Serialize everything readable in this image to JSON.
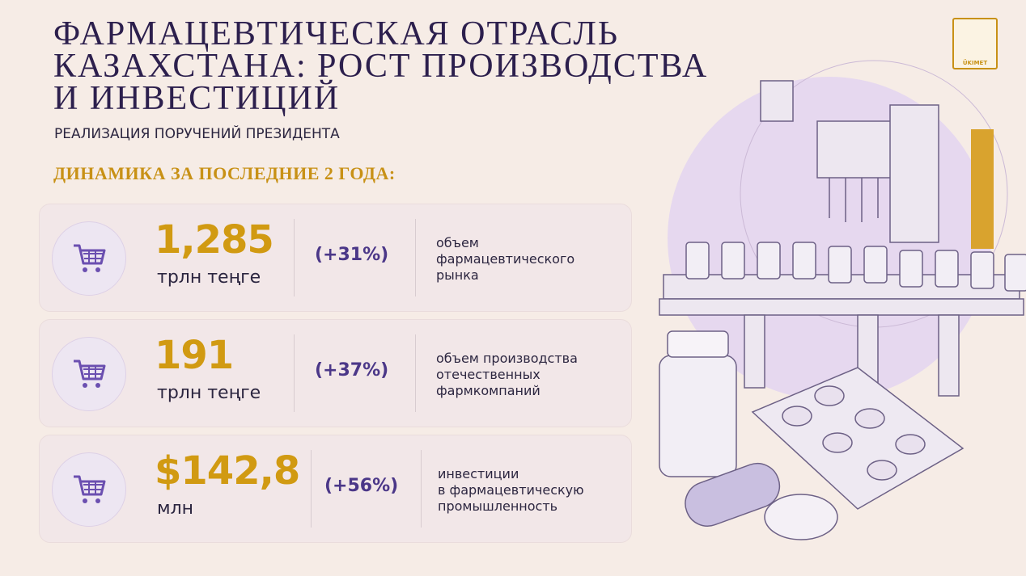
{
  "header": {
    "title_lines": [
      "ФАРМАЦЕВТИЧЕСКАЯ ОТРАСЛЬ",
      "КАЗАХСТАНА: РОСТ ПРОИЗВОДСТВА",
      "И ИНВЕСТИЦИЙ"
    ],
    "subtitle": "РЕАЛИЗАЦИЯ ПОРУЧЕНИЙ ПРЕЗИДЕНТА",
    "section_heading": "ДИНАМИКА ЗА ПОСЛЕДНИЕ 2 ГОДА:"
  },
  "logo": {
    "label": "ÜKIMET"
  },
  "cards": [
    {
      "value": "1,285",
      "unit": "трлн теңге",
      "change": "(+31%)",
      "description_lines": [
        "объем",
        "фармацевтического",
        "рынка"
      ]
    },
    {
      "value": "191",
      "unit": "трлн теңге",
      "change": "(+37%)",
      "description_lines": [
        "объем производства",
        "отечественных",
        "фармкомпаний"
      ]
    },
    {
      "value": "$142,8",
      "unit": "млн",
      "change": "(+56%)",
      "description_lines": [
        "инвестиции",
        "в фармацевтическую",
        "промышленность"
      ]
    }
  ]
}
